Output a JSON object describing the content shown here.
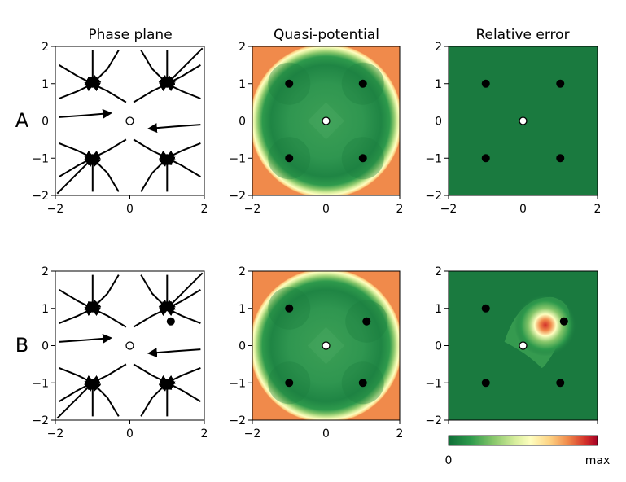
{
  "figure": {
    "column_titles": [
      "Phase plane",
      "Quasi-potential",
      "Relative error"
    ],
    "row_labels": [
      "A",
      "B"
    ]
  },
  "colors": {
    "stable_point": "#000000",
    "saddle_point_fill": "#ffffff",
    "dark_green": "#1a7a3f",
    "colormap": [
      "#0f6e37",
      "#2e9a4c",
      "#86c66a",
      "#d8ee9d",
      "#fefebf",
      "#fdd283",
      "#f08a4b",
      "#d3302a",
      "#a50026"
    ]
  },
  "colorbar": {
    "min_label": "0",
    "max_label": "max"
  },
  "chart_data": [
    {
      "type": "scatter",
      "panel": "A-phase-plane",
      "title": "Phase plane",
      "xlim": [
        -2,
        2
      ],
      "ylim": [
        -2,
        2
      ],
      "xticks": [
        "−2",
        "0",
        "2"
      ],
      "yticks": [
        "2",
        "1",
        "0",
        "−1",
        "−2"
      ],
      "stable_points": [
        [
          -1,
          1
        ],
        [
          1,
          1
        ],
        [
          -1,
          -1
        ],
        [
          1,
          -1
        ]
      ],
      "saddle_points": [
        [
          0,
          0
        ]
      ],
      "streamlines": "vector field flow toward the four stable points"
    },
    {
      "type": "heatmap",
      "panel": "A-quasi-potential",
      "title": "Quasi-potential",
      "xlim": [
        -2,
        2
      ],
      "ylim": [
        -2,
        2
      ],
      "xticks": [
        "−2",
        "0",
        "2"
      ],
      "yticks": [
        "2",
        "1",
        "0",
        "−1",
        "−2"
      ],
      "stable_points": [
        [
          -1,
          1
        ],
        [
          1,
          1
        ],
        [
          -1,
          -1
        ],
        [
          1,
          -1
        ]
      ],
      "saddle_points": [
        [
          0,
          0
        ]
      ]
    },
    {
      "type": "heatmap",
      "panel": "A-relative-error",
      "title": "Relative error",
      "xlim": [
        -2,
        2
      ],
      "ylim": [
        -2,
        2
      ],
      "xticks": [
        "−2",
        "0",
        "2"
      ],
      "yticks": [
        "2",
        "1",
        "0",
        "−1",
        "−2"
      ],
      "stable_points": [
        [
          -1,
          1
        ],
        [
          1,
          1
        ],
        [
          -1,
          -1
        ],
        [
          1,
          -1
        ]
      ],
      "saddle_points": [
        [
          0,
          0
        ]
      ],
      "error_peak": null
    },
    {
      "type": "scatter",
      "panel": "B-phase-plane",
      "title": "",
      "xlim": [
        -2,
        2
      ],
      "ylim": [
        -2,
        2
      ],
      "xticks": [
        "−2",
        "0",
        "2"
      ],
      "yticks": [
        "2",
        "1",
        "0",
        "−1",
        "−2"
      ],
      "stable_points": [
        [
          -1,
          1
        ],
        [
          1.1,
          0.65
        ],
        [
          -1,
          -1
        ],
        [
          1,
          -1
        ]
      ],
      "saddle_points": [
        [
          0,
          0
        ]
      ],
      "streamlines": "vector field flow toward the four stable points"
    },
    {
      "type": "heatmap",
      "panel": "B-quasi-potential",
      "title": "",
      "xlim": [
        -2,
        2
      ],
      "ylim": [
        -2,
        2
      ],
      "xticks": [
        "−2",
        "0",
        "2"
      ],
      "yticks": [
        "2",
        "1",
        "0",
        "−1",
        "−2"
      ],
      "stable_points": [
        [
          -1,
          1
        ],
        [
          1.1,
          0.65
        ],
        [
          -1,
          -1
        ],
        [
          1,
          -1
        ]
      ],
      "saddle_points": [
        [
          0,
          0
        ]
      ]
    },
    {
      "type": "heatmap",
      "panel": "B-relative-error",
      "title": "",
      "xlim": [
        -2,
        2
      ],
      "ylim": [
        -2,
        2
      ],
      "xticks": [
        "",
        "",
        ""
      ],
      "yticks": [
        "2",
        "1",
        "0",
        "−1",
        "−2"
      ],
      "stable_points": [
        [
          -1,
          1
        ],
        [
          1.1,
          0.65
        ],
        [
          -1,
          -1
        ],
        [
          1,
          -1
        ]
      ],
      "saddle_points": [
        [
          0,
          0
        ]
      ],
      "error_peak": [
        0.6,
        0.55
      ]
    }
  ]
}
